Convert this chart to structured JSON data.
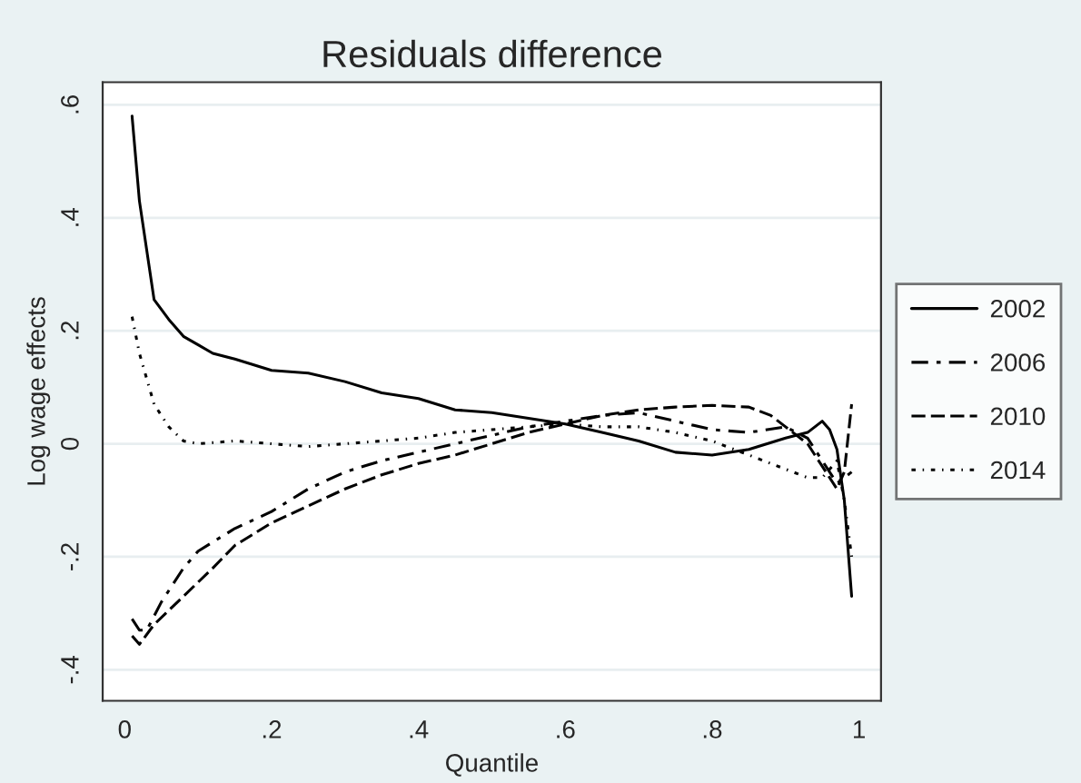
{
  "chart_data": {
    "type": "line",
    "title": "Residuals difference",
    "xlabel": "Quantile",
    "ylabel": "Log wage effects",
    "xlim": [
      -0.03,
      1.03
    ],
    "ylim": [
      -0.455,
      0.64
    ],
    "xticks": [
      0,
      {
        "value": 0.2,
        "label": ".2"
      },
      {
        "value": 0.4,
        "label": ".4"
      },
      {
        "value": 0.6,
        "label": ".6"
      },
      {
        "value": 0.8,
        "label": ".8"
      },
      1
    ],
    "yticks": [
      {
        "value": -0.4,
        "label": "-.4"
      },
      {
        "value": -0.2,
        "label": "-.2"
      },
      0,
      {
        "value": 0.2,
        "label": ".2"
      },
      {
        "value": 0.4,
        "label": ".4"
      },
      {
        "value": 0.6,
        "label": ".6"
      }
    ],
    "grid": "y",
    "legend": "right",
    "marker": "none",
    "series": [
      {
        "name": "2002",
        "color": "#000000",
        "line_style": "solid",
        "x": [
          0.01,
          0.02,
          0.04,
          0.06,
          0.08,
          0.1,
          0.12,
          0.15,
          0.2,
          0.25,
          0.3,
          0.35,
          0.4,
          0.45,
          0.5,
          0.55,
          0.6,
          0.65,
          0.7,
          0.75,
          0.8,
          0.85,
          0.9,
          0.93,
          0.95,
          0.96,
          0.97,
          0.98,
          0.99
        ],
        "values": [
          0.58,
          0.43,
          0.255,
          0.22,
          0.19,
          0.175,
          0.16,
          0.15,
          0.13,
          0.125,
          0.11,
          0.09,
          0.08,
          0.06,
          0.055,
          0.045,
          0.035,
          0.02,
          0.005,
          -0.015,
          -0.02,
          -0.01,
          0.01,
          0.02,
          0.04,
          0.025,
          -0.01,
          -0.1,
          -0.27
        ]
      },
      {
        "name": "2006",
        "color": "#000000",
        "line_style": "dashdot",
        "x": [
          0.01,
          0.02,
          0.03,
          0.05,
          0.08,
          0.1,
          0.15,
          0.2,
          0.25,
          0.3,
          0.35,
          0.4,
          0.45,
          0.5,
          0.55,
          0.6,
          0.65,
          0.7,
          0.75,
          0.8,
          0.85,
          0.9,
          0.93,
          0.95,
          0.97,
          0.99
        ],
        "values": [
          -0.31,
          -0.33,
          -0.33,
          -0.28,
          -0.22,
          -0.19,
          -0.15,
          -0.12,
          -0.08,
          -0.05,
          -0.03,
          -0.015,
          0.0,
          0.015,
          0.03,
          0.04,
          0.05,
          0.055,
          0.04,
          0.025,
          0.02,
          0.03,
          0.01,
          -0.03,
          -0.07,
          -0.05
        ]
      },
      {
        "name": "2010",
        "color": "#000000",
        "line_style": "dashed",
        "x": [
          0.01,
          0.02,
          0.04,
          0.08,
          0.12,
          0.15,
          0.2,
          0.25,
          0.3,
          0.35,
          0.4,
          0.45,
          0.5,
          0.55,
          0.6,
          0.65,
          0.7,
          0.75,
          0.8,
          0.85,
          0.88,
          0.9,
          0.93,
          0.95,
          0.97,
          0.98,
          0.99
        ],
        "values": [
          -0.34,
          -0.355,
          -0.32,
          -0.27,
          -0.22,
          -0.18,
          -0.14,
          -0.11,
          -0.08,
          -0.055,
          -0.035,
          -0.02,
          0.0,
          0.02,
          0.035,
          0.05,
          0.06,
          0.065,
          0.068,
          0.065,
          0.05,
          0.03,
          0.0,
          -0.04,
          -0.08,
          -0.05,
          0.07
        ]
      },
      {
        "name": "2014",
        "color": "#000000",
        "line_style": "dotted",
        "x": [
          0.01,
          0.02,
          0.04,
          0.06,
          0.08,
          0.1,
          0.15,
          0.2,
          0.25,
          0.3,
          0.35,
          0.4,
          0.45,
          0.5,
          0.55,
          0.6,
          0.65,
          0.7,
          0.75,
          0.8,
          0.85,
          0.9,
          0.93,
          0.95,
          0.97,
          0.98,
          0.99
        ],
        "values": [
          0.225,
          0.16,
          0.07,
          0.03,
          0.005,
          0.0,
          0.005,
          0.0,
          -0.005,
          0.0,
          0.005,
          0.01,
          0.02,
          0.025,
          0.03,
          0.035,
          0.03,
          0.03,
          0.02,
          0.005,
          -0.02,
          -0.045,
          -0.06,
          -0.06,
          -0.03,
          -0.1,
          -0.2
        ]
      }
    ]
  }
}
